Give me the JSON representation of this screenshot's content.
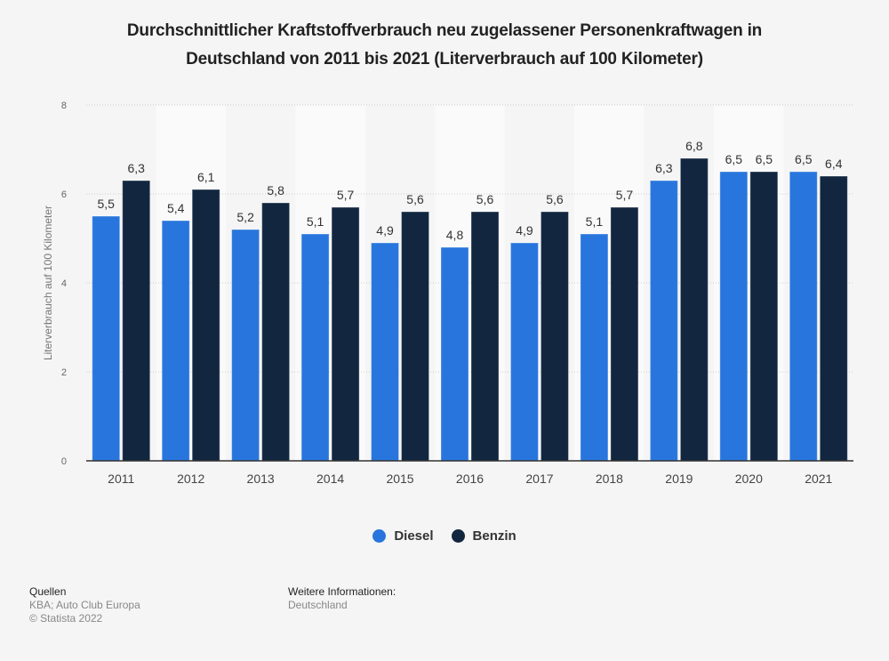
{
  "title_line1": "Durchschnittlicher Kraftstoffverbrauch neu zugelassener Personenkraftwagen in",
  "title_line2": "Deutschland von 2011 bis 2021 (Literverbrauch auf 100 Kilometer)",
  "chart_data": {
    "type": "bar",
    "title": "Durchschnittlicher Kraftstoffverbrauch neu zugelassener Personenkraftwagen in Deutschland von 2011 bis 2021 (Literverbrauch auf 100 Kilometer)",
    "xlabel": "",
    "ylabel": "Literverbrauch auf 100 Kilometer",
    "ylim": [
      0,
      8
    ],
    "yticks": [
      0,
      2,
      4,
      6,
      8
    ],
    "grid": true,
    "legend_position": "bottom-center",
    "categories": [
      "2011",
      "2012",
      "2013",
      "2014",
      "2015",
      "2016",
      "2017",
      "2018",
      "2019",
      "2020",
      "2021"
    ],
    "series": [
      {
        "name": "Diesel",
        "color": "#2876dd",
        "values": [
          5.5,
          5.4,
          5.2,
          5.1,
          4.9,
          4.8,
          4.9,
          5.1,
          6.3,
          6.5,
          6.5
        ],
        "labels": [
          "5,5",
          "5,4",
          "5,2",
          "5,1",
          "4,9",
          "4,8",
          "4,9",
          "5,1",
          "6,3",
          "6,5",
          "6,5"
        ]
      },
      {
        "name": "Benzin",
        "color": "#12273f",
        "values": [
          6.3,
          6.1,
          5.8,
          5.7,
          5.6,
          5.6,
          5.6,
          5.7,
          6.8,
          6.5,
          6.4
        ],
        "labels": [
          "6,3",
          "6,1",
          "5,8",
          "5,7",
          "5,6",
          "5,6",
          "5,6",
          "5,7",
          "6,8",
          "6,5",
          "6,4"
        ]
      }
    ]
  },
  "legend": [
    {
      "label": "Diesel",
      "color": "#2876dd"
    },
    {
      "label": "Benzin",
      "color": "#12273f"
    }
  ],
  "footer": {
    "sources_heading": "Quellen",
    "sources_text": "KBA; Auto Club Europa",
    "copyright": "© Statista 2022",
    "info_heading": "Weitere Informationen:",
    "info_text": "Deutschland"
  }
}
